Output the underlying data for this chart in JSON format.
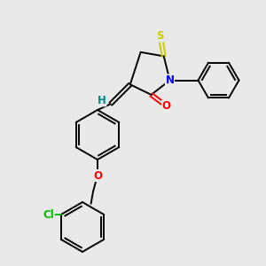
{
  "bg_color": "#e9e9e9",
  "atom_colors": {
    "S": "#cccc00",
    "N": "#0000ff",
    "O": "#ff0000",
    "Cl": "#00bb00",
    "H": "#008888",
    "C": "#000000"
  },
  "bond_color": "#000000",
  "bond_width": 1.4,
  "font_size": 8.5
}
